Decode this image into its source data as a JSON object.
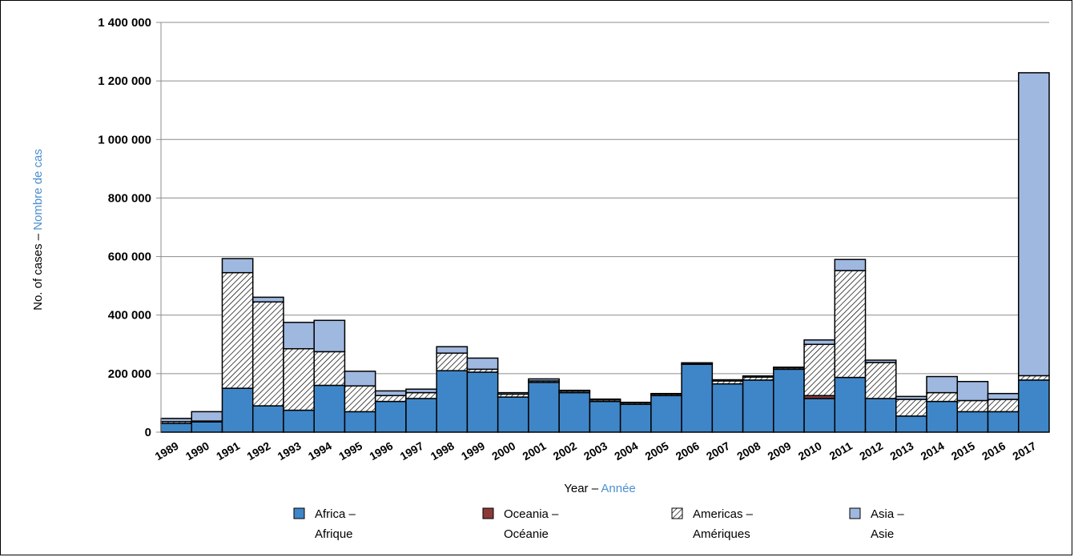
{
  "chart_data": {
    "type": "bar",
    "stacked": true,
    "categories": [
      "1989",
      "1990",
      "1991",
      "1992",
      "1993",
      "1994",
      "1995",
      "1996",
      "1997",
      "1998",
      "1999",
      "2000",
      "2001",
      "2002",
      "2003",
      "2004",
      "2005",
      "2006",
      "2007",
      "2008",
      "2009",
      "2010",
      "2011",
      "2012",
      "2013",
      "2014",
      "2015",
      "2016",
      "2017"
    ],
    "series": [
      {
        "name": "Africa",
        "name_fr": "Afrique",
        "color": "#3f86c8",
        "values": [
          30000,
          35000,
          150000,
          90000,
          75000,
          160000,
          70000,
          105000,
          115000,
          210000,
          205000,
          120000,
          170000,
          135000,
          105000,
          95000,
          125000,
          232000,
          165000,
          178000,
          215000,
          115000,
          187000,
          115000,
          55000,
          105000,
          70000,
          70000,
          178000
        ]
      },
      {
        "name": "Oceania",
        "name_fr": "Océanie",
        "color": "#8b3a3a",
        "values": [
          0,
          0,
          0,
          0,
          0,
          0,
          0,
          0,
          0,
          0,
          0,
          0,
          0,
          0,
          0,
          0,
          0,
          0,
          0,
          0,
          0,
          10000,
          0,
          0,
          0,
          0,
          0,
          0,
          0
        ]
      },
      {
        "name": "Americas",
        "name_fr": "Amériques",
        "color": "#ffffff",
        "pattern": "hatch",
        "values": [
          6000,
          3000,
          395000,
          355000,
          210000,
          115000,
          88000,
          20000,
          20000,
          60000,
          10000,
          10000,
          5000,
          5000,
          5000,
          5000,
          5000,
          3000,
          10000,
          10000,
          5000,
          175000,
          365000,
          123000,
          57000,
          30000,
          38000,
          42000,
          15000
        ]
      },
      {
        "name": "Asia",
        "name_fr": "Asie",
        "color": "#9fb8e0",
        "values": [
          11000,
          32000,
          48000,
          16000,
          90000,
          107000,
          50000,
          16000,
          12000,
          22000,
          38000,
          5000,
          7000,
          3000,
          3000,
          2000,
          2000,
          2000,
          4000,
          4000,
          2000,
          15000,
          38000,
          8000,
          10000,
          55000,
          65000,
          20000,
          1035000
        ]
      }
    ],
    "ylim": [
      0,
      1400000
    ],
    "yticks": [
      "0",
      "200 000",
      "400 000",
      "600 000",
      "800 000",
      "1 000 000",
      "1 200 000",
      "1 400 000"
    ],
    "ylabel": "No. of cases –",
    "ylabel_fr": "Nombre de cas",
    "xlabel": "Year –",
    "xlabel_fr": "Année",
    "grid": "horizontal",
    "legend_position": "bottom",
    "legend_entries": [
      {
        "en": "Africa –",
        "fr": "Afrique"
      },
      {
        "en": "Oceania –",
        "fr": "Océanie"
      },
      {
        "en": "Americas –",
        "fr": "Amériques"
      },
      {
        "en": "Asia –",
        "fr": "Asie"
      }
    ]
  }
}
